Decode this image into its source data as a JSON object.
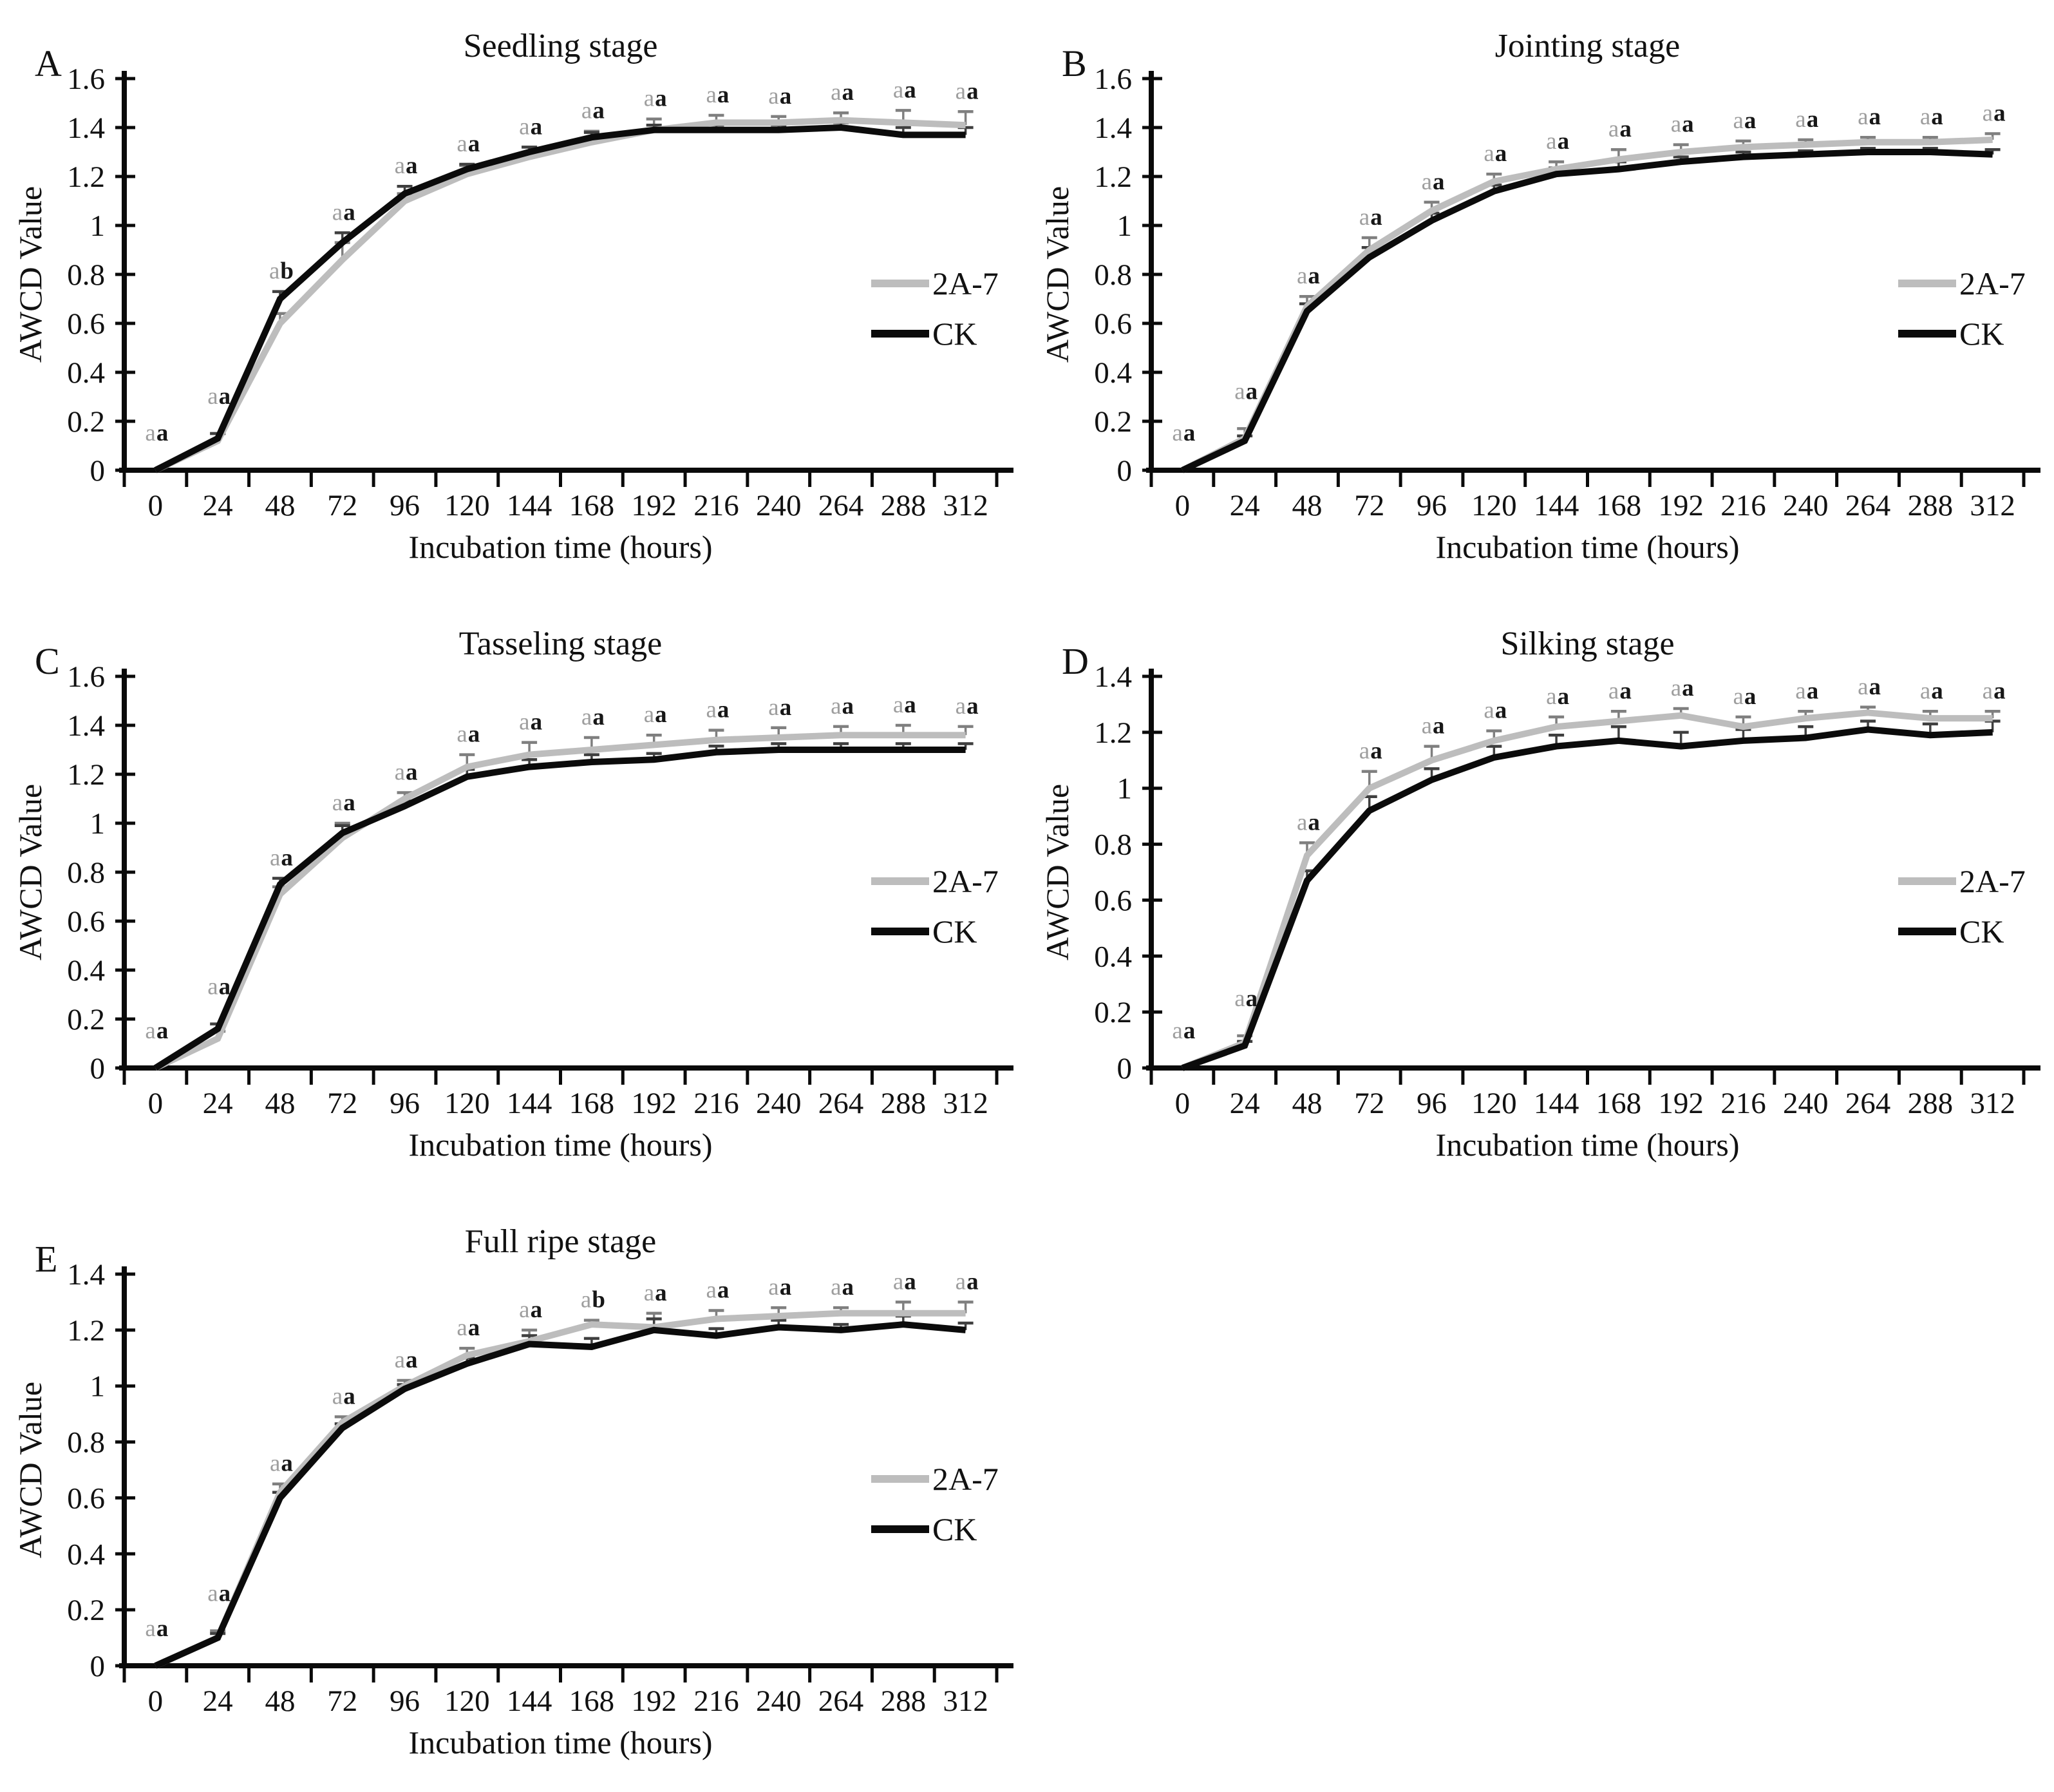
{
  "figure": {
    "background": "#ffffff",
    "legend_position": "inside-right",
    "annotation_letter_colors": {
      "first": "#9e9e9e",
      "second": "#171717"
    },
    "axis_color": "#0a0a0a"
  },
  "chart_data": [
    {
      "panel": "A",
      "type": "line",
      "title": "Seedling stage",
      "xlabel": "Incubation time (hours)",
      "ylabel": "AWCD Value",
      "x": [
        0,
        24,
        48,
        72,
        96,
        120,
        144,
        168,
        192,
        216,
        240,
        264,
        288,
        312
      ],
      "ylim": [
        0,
        1.6
      ],
      "yticks": [
        "0",
        "0.2",
        "0.4",
        "0.6",
        "0.8",
        "1",
        "1.2",
        "1.4",
        "1.6"
      ],
      "grid": false,
      "series": [
        {
          "name": "2A-7",
          "color": "#bdbdbd",
          "err_color": "#7f7f7f",
          "values": [
            0,
            0.12,
            0.6,
            0.86,
            1.1,
            1.21,
            1.28,
            1.34,
            1.39,
            1.42,
            1.42,
            1.43,
            1.42,
            1.41
          ],
          "err": [
            0,
            0.03,
            0.04,
            0.07,
            0.03,
            0.035,
            0.04,
            0.045,
            0.045,
            0.03,
            0.025,
            0.03,
            0.05,
            0.055
          ]
        },
        {
          "name": "CK",
          "color": "#0b0b0b",
          "err_color": "#3f3f3f",
          "values": [
            0,
            0.13,
            0.7,
            0.93,
            1.13,
            1.23,
            1.3,
            1.36,
            1.39,
            1.39,
            1.39,
            1.4,
            1.37,
            1.37
          ],
          "err": [
            0,
            0.02,
            0.03,
            0.04,
            0.03,
            0.02,
            0.02,
            0.02,
            0.02,
            0.02,
            0.02,
            0.02,
            0.03,
            0.03
          ]
        }
      ],
      "point_labels": [
        "aa",
        "aa",
        "ab",
        "aa",
        "aa",
        "aa",
        "aa",
        "aa",
        "aa",
        "aa",
        "aa",
        "aa",
        "aa",
        "aa"
      ],
      "legend": [
        "2A-7",
        "CK"
      ]
    },
    {
      "panel": "B",
      "type": "line",
      "title": "Jointing stage",
      "xlabel": "Incubation time (hours)",
      "ylabel": "AWCD Value",
      "x": [
        0,
        24,
        48,
        72,
        96,
        120,
        144,
        168,
        192,
        216,
        240,
        264,
        288,
        312
      ],
      "ylim": [
        0,
        1.6
      ],
      "yticks": [
        "0",
        "0.2",
        "0.4",
        "0.6",
        "0.8",
        "1",
        "1.2",
        "1.4",
        "1.6"
      ],
      "grid": false,
      "series": [
        {
          "name": "2A-7",
          "color": "#bdbdbd",
          "err_color": "#7f7f7f",
          "values": [
            0,
            0.13,
            0.67,
            0.9,
            1.06,
            1.18,
            1.23,
            1.27,
            1.3,
            1.32,
            1.33,
            1.34,
            1.34,
            1.35
          ],
          "err": [
            0,
            0.04,
            0.04,
            0.05,
            0.035,
            0.03,
            0.03,
            0.04,
            0.03,
            0.025,
            0.02,
            0.02,
            0.02,
            0.025
          ]
        },
        {
          "name": "CK",
          "color": "#0b0b0b",
          "err_color": "#3f3f3f",
          "values": [
            0,
            0.12,
            0.65,
            0.87,
            1.02,
            1.14,
            1.21,
            1.23,
            1.26,
            1.28,
            1.29,
            1.3,
            1.3,
            1.29
          ],
          "err": [
            0,
            0.02,
            0.03,
            0.04,
            0.03,
            0.025,
            0.025,
            0.03,
            0.02,
            0.02,
            0.015,
            0.015,
            0.015,
            0.02
          ]
        }
      ],
      "point_labels": [
        "aa",
        "aa",
        "aa",
        "aa",
        "aa",
        "aa",
        "aa",
        "aa",
        "aa",
        "aa",
        "aa",
        "aa",
        "aa",
        "aa"
      ],
      "legend": [
        "2A-7",
        "CK"
      ]
    },
    {
      "panel": "C",
      "type": "line",
      "title": "Tasseling stage",
      "xlabel": "Incubation time (hours)",
      "ylabel": "AWCD Value",
      "x": [
        0,
        24,
        48,
        72,
        96,
        120,
        144,
        168,
        192,
        216,
        240,
        264,
        288,
        312
      ],
      "ylim": [
        0,
        1.6
      ],
      "yticks": [
        "0",
        "0.2",
        "0.4",
        "0.6",
        "0.8",
        "1",
        "1.2",
        "1.4",
        "1.6"
      ],
      "grid": false,
      "series": [
        {
          "name": "2A-7",
          "color": "#bdbdbd",
          "err_color": "#7f7f7f",
          "values": [
            0,
            0.12,
            0.71,
            0.94,
            1.1,
            1.23,
            1.28,
            1.3,
            1.32,
            1.34,
            1.35,
            1.36,
            1.36,
            1.36
          ],
          "err": [
            0,
            0.03,
            0.03,
            0.06,
            0.025,
            0.05,
            0.05,
            0.05,
            0.04,
            0.04,
            0.04,
            0.035,
            0.04,
            0.035
          ]
        },
        {
          "name": "CK",
          "color": "#0b0b0b",
          "err_color": "#3f3f3f",
          "values": [
            0,
            0.16,
            0.75,
            0.96,
            1.07,
            1.19,
            1.23,
            1.25,
            1.26,
            1.29,
            1.3,
            1.3,
            1.3,
            1.3
          ],
          "err": [
            0,
            0.02,
            0.025,
            0.03,
            0.02,
            0.03,
            0.03,
            0.03,
            0.025,
            0.025,
            0.025,
            0.025,
            0.025,
            0.025
          ]
        }
      ],
      "point_labels": [
        "aa",
        "aa",
        "aa",
        "aa",
        "aa",
        "aa",
        "aa",
        "aa",
        "aa",
        "aa",
        "aa",
        "aa",
        "aa",
        "aa"
      ],
      "legend": [
        "2A-7",
        "CK"
      ]
    },
    {
      "panel": "D",
      "type": "line",
      "title": "Silking stage",
      "xlabel": "Incubation time (hours)",
      "ylabel": "AWCD Value",
      "x": [
        0,
        24,
        48,
        72,
        96,
        120,
        144,
        168,
        192,
        216,
        240,
        264,
        288,
        312
      ],
      "ylim": [
        0,
        1.4
      ],
      "yticks": [
        "0",
        "0.2",
        "0.4",
        "0.6",
        "0.8",
        "1",
        "1.2",
        "1.4"
      ],
      "grid": false,
      "series": [
        {
          "name": "2A-7",
          "color": "#bdbdbd",
          "err_color": "#7f7f7f",
          "values": [
            0,
            0.09,
            0.76,
            1.0,
            1.1,
            1.17,
            1.22,
            1.24,
            1.26,
            1.22,
            1.25,
            1.27,
            1.25,
            1.25
          ],
          "err": [
            0,
            0.025,
            0.045,
            0.06,
            0.05,
            0.035,
            0.035,
            0.035,
            0.025,
            0.035,
            0.025,
            0.02,
            0.025,
            0.025
          ]
        },
        {
          "name": "CK",
          "color": "#0b0b0b",
          "err_color": "#3f3f3f",
          "values": [
            0,
            0.08,
            0.67,
            0.92,
            1.03,
            1.11,
            1.15,
            1.17,
            1.15,
            1.17,
            1.18,
            1.21,
            1.19,
            1.2
          ],
          "err": [
            0,
            0.015,
            0.035,
            0.05,
            0.04,
            0.04,
            0.04,
            0.05,
            0.05,
            0.04,
            0.04,
            0.03,
            0.04,
            0.04
          ]
        }
      ],
      "point_labels": [
        "aa",
        "aa",
        "aa",
        "aa",
        "aa",
        "aa",
        "aa",
        "aa",
        "aa",
        "aa",
        "aa",
        "aa",
        "aa",
        "aa"
      ],
      "legend": [
        "2A-7",
        "CK"
      ]
    },
    {
      "panel": "E",
      "type": "line",
      "title": "Full ripe stage",
      "xlabel": "Incubation time (hours)",
      "ylabel": "AWCD Value",
      "x": [
        0,
        24,
        48,
        72,
        96,
        120,
        144,
        168,
        192,
        216,
        240,
        264,
        288,
        312
      ],
      "ylim": [
        0,
        1.4
      ],
      "yticks": [
        "0",
        "0.2",
        "0.4",
        "0.6",
        "0.8",
        "1",
        "1.2",
        "1.4"
      ],
      "grid": false,
      "series": [
        {
          "name": "2A-7",
          "color": "#bdbdbd",
          "err_color": "#7f7f7f",
          "values": [
            0,
            0.1,
            0.62,
            0.87,
            1.0,
            1.11,
            1.16,
            1.22,
            1.21,
            1.24,
            1.25,
            1.26,
            1.26,
            1.26
          ],
          "err": [
            0,
            0.025,
            0.03,
            0.02,
            0.02,
            0.025,
            0.04,
            0.015,
            0.05,
            0.03,
            0.03,
            0.02,
            0.04,
            0.04
          ]
        },
        {
          "name": "CK",
          "color": "#0b0b0b",
          "err_color": "#3f3f3f",
          "values": [
            0,
            0.1,
            0.6,
            0.85,
            0.99,
            1.08,
            1.15,
            1.14,
            1.2,
            1.18,
            1.21,
            1.2,
            1.22,
            1.2
          ],
          "err": [
            0,
            0.015,
            0.02,
            0.015,
            0.015,
            0.02,
            0.03,
            0.03,
            0.04,
            0.025,
            0.025,
            0.02,
            0.03,
            0.025
          ]
        }
      ],
      "point_labels": [
        "aa",
        "aa",
        "aa",
        "aa",
        "aa",
        "aa",
        "aa",
        "ab",
        "aa",
        "aa",
        "aa",
        "aa",
        "aa",
        "aa"
      ],
      "legend": [
        "2A-7",
        "CK"
      ]
    }
  ]
}
